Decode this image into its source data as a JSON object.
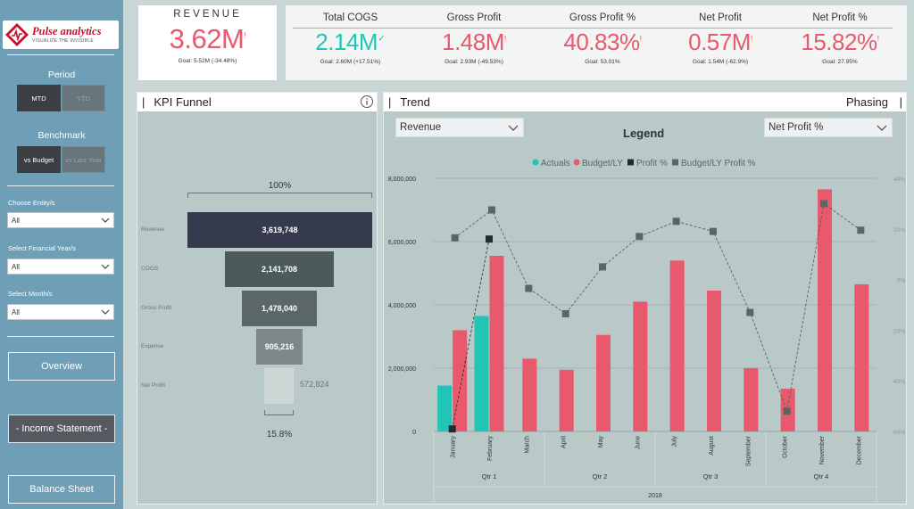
{
  "sidebar": {
    "logo_title": "Pulse analytics",
    "logo_tagline": "VISUALIZE THE INVISIBLE",
    "period_label": "Period",
    "period_options": [
      "MTD",
      "YTD"
    ],
    "benchmark_label": "Benchmark",
    "benchmark_options": [
      "vs Budget",
      "vs Last Year"
    ],
    "filters": [
      {
        "label": "Choose Entity/s",
        "value": "All"
      },
      {
        "label": "Select Financial Year/s",
        "value": "All"
      },
      {
        "label": "Select Month/s",
        "value": "All"
      }
    ],
    "nav": [
      "Overview",
      "- Income Statement -",
      "Balance Sheet"
    ]
  },
  "kpis": {
    "revenue": {
      "title": "REVENUE",
      "value": "3.62M",
      "mark": "!",
      "goal": "Goal: 5.52M (-34.48%)"
    },
    "cards": [
      {
        "title": "Total COGS",
        "value": "2.14M",
        "mark": "✓",
        "goal": "Goal: 2.60M (+17.51%)",
        "color": "#1fc6b6"
      },
      {
        "title": "Gross Profit",
        "value": "1.48M",
        "mark": "!",
        "goal": "Goal: 2.93M (-49.53%)",
        "color": "#e8596d"
      },
      {
        "title": "Gross Profit %",
        "value": "40.83%",
        "mark": "!",
        "goal": "Goal: 53.01%",
        "color": "#e8596d"
      },
      {
        "title": "Net Profit",
        "value": "0.57M",
        "mark": "!",
        "goal": "Goal: 1.54M (-62.9%)",
        "color": "#e8596d"
      },
      {
        "title": "Net Profit %",
        "value": "15.82%",
        "mark": "!",
        "goal": "Goal: 27.95%",
        "color": "#e8596d"
      }
    ]
  },
  "funnel": {
    "title": "KPI Funnel",
    "info_icon": "info-icon",
    "top_pct": "100%",
    "bottom_pct": "15.8%",
    "items": [
      {
        "label": "Revenue",
        "value": "3,619,748",
        "amount": 3619748,
        "color": "#363a4e"
      },
      {
        "label": "COGS",
        "value": "2,141,708",
        "amount": 2141708,
        "color": "#4c5a5c"
      },
      {
        "label": "Gross Profit",
        "value": "1,478,040",
        "amount": 1478040,
        "color": "#5b6667"
      },
      {
        "label": "Expense",
        "value": "905,216",
        "amount": 905216,
        "color": "#7e8788"
      },
      {
        "label": "Net Profit",
        "value": "572,824",
        "amount": 572824,
        "color": "#cdd7d6"
      }
    ]
  },
  "trend": {
    "title": "Trend",
    "phasing": "Phasing",
    "dropdown_left": "Revenue",
    "dropdown_right": "Net Profit %",
    "legend_title": "Legend",
    "colors": {
      "actuals": "#1fc6b6",
      "budget": "#e8596d",
      "profit": "#252a2e",
      "budget_profit": "#5c6466"
    }
  },
  "chart_data": {
    "type": "bar",
    "title": "Legend",
    "legend": [
      "Actuals",
      "Budget/LY",
      "Profit %",
      "Budget/LY Profit %"
    ],
    "categories": [
      "January",
      "February",
      "March",
      "April",
      "May",
      "June",
      "July",
      "August",
      "September",
      "October",
      "November",
      "December"
    ],
    "quarters": [
      "Qtr 1",
      "Qtr 2",
      "Qtr 3",
      "Qtr 4"
    ],
    "year": "2018",
    "series": [
      {
        "name": "Actuals",
        "values": [
          1450000,
          3650000,
          null,
          null,
          null,
          null,
          null,
          null,
          null,
          null,
          null,
          null
        ]
      },
      {
        "name": "Budget/LY",
        "values": [
          3200000,
          5550000,
          2300000,
          1950000,
          3050000,
          4100000,
          5400000,
          4450000,
          2000000,
          1350000,
          7650000,
          4650000
        ]
      },
      {
        "name": "Profit %",
        "axis": "right",
        "values": [
          -59,
          16,
          null,
          null,
          null,
          null,
          null,
          null,
          null,
          null,
          null,
          null
        ]
      },
      {
        "name": "Budget/LY Profit %",
        "axis": "right",
        "values": [
          16.5,
          27.5,
          -3.5,
          -13.5,
          5,
          17,
          23,
          19,
          -13,
          -52,
          30,
          19.5
        ]
      }
    ],
    "ylim": [
      0,
      8000000
    ],
    "yticks": [
      "0",
      "2,000,000",
      "4,000,000",
      "6,000,000",
      "8,000,000"
    ],
    "ytick_values": [
      0,
      2000000,
      4000000,
      6000000,
      8000000
    ],
    "y2lim": [
      -60,
      40
    ],
    "y2ticks": [
      "-60%",
      "-40%",
      "-20%",
      "0%",
      "20%",
      "40%"
    ],
    "y2tick_values": [
      -60,
      -40,
      -20,
      0,
      20,
      40
    ],
    "grid": true,
    "legend_position": "top-center"
  }
}
